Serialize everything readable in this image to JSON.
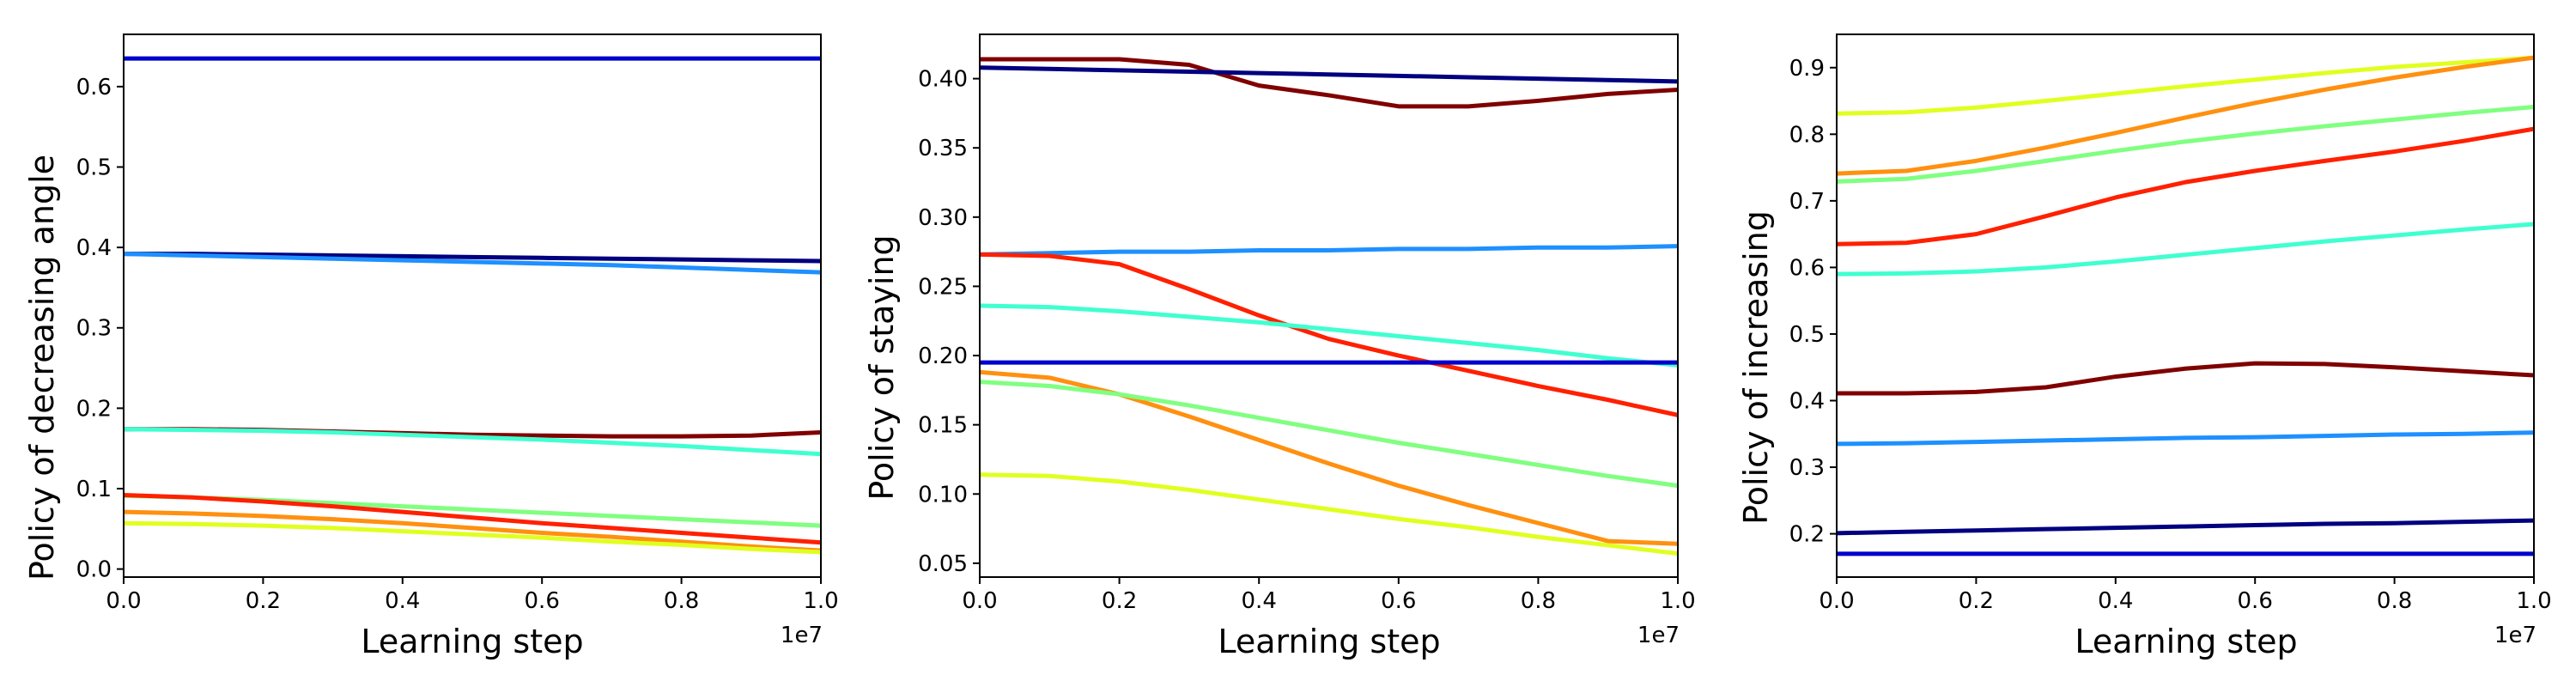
{
  "chart_data": [
    {
      "type": "line",
      "xlabel": "Learning step",
      "ylabel": "Policy of decreasing angle",
      "x_offset_label": "1e7",
      "xlim": [
        0,
        1.0
      ],
      "ylim": [
        -0.01,
        0.665
      ],
      "xticks": [
        "0.0",
        "0.2",
        "0.4",
        "0.6",
        "0.8",
        "1.0"
      ],
      "yticks": [
        "0.0",
        "0.1",
        "0.2",
        "0.3",
        "0.4",
        "0.5",
        "0.6"
      ],
      "grid": false,
      "x": [
        0.0,
        0.1,
        0.2,
        0.3,
        0.4,
        0.5,
        0.6,
        0.7,
        0.8,
        0.9,
        1.0
      ],
      "series": [
        {
          "color": "#0000cd",
          "values": [
            0.635,
            0.635,
            0.635,
            0.635,
            0.635,
            0.635,
            0.635,
            0.635,
            0.635,
            0.635,
            0.635
          ]
        },
        {
          "color": "#000080",
          "values": [
            0.392,
            0.392,
            0.391,
            0.39,
            0.389,
            0.388,
            0.387,
            0.386,
            0.385,
            0.384,
            0.383
          ]
        },
        {
          "color": "#1e90ff",
          "values": [
            0.392,
            0.39,
            0.388,
            0.386,
            0.384,
            0.382,
            0.38,
            0.378,
            0.375,
            0.372,
            0.369
          ]
        },
        {
          "color": "#800000",
          "values": [
            0.174,
            0.174,
            0.173,
            0.171,
            0.169,
            0.167,
            0.166,
            0.165,
            0.165,
            0.166,
            0.17
          ]
        },
        {
          "color": "#40ffd0",
          "values": [
            0.174,
            0.173,
            0.172,
            0.17,
            0.167,
            0.164,
            0.161,
            0.157,
            0.153,
            0.148,
            0.143
          ]
        },
        {
          "color": "#80ff80",
          "values": [
            0.091,
            0.089,
            0.086,
            0.082,
            0.078,
            0.074,
            0.07,
            0.066,
            0.062,
            0.058,
            0.054
          ]
        },
        {
          "color": "#ff2000",
          "values": [
            0.092,
            0.089,
            0.084,
            0.078,
            0.071,
            0.064,
            0.057,
            0.051,
            0.045,
            0.039,
            0.033
          ]
        },
        {
          "color": "#ff9010",
          "values": [
            0.071,
            0.069,
            0.066,
            0.062,
            0.057,
            0.051,
            0.045,
            0.04,
            0.034,
            0.028,
            0.023
          ]
        },
        {
          "color": "#e0ff20",
          "values": [
            0.057,
            0.056,
            0.054,
            0.051,
            0.047,
            0.043,
            0.039,
            0.034,
            0.03,
            0.025,
            0.021
          ]
        }
      ]
    },
    {
      "type": "line",
      "xlabel": "Learning step",
      "ylabel": "Policy of staying",
      "x_offset_label": "1e7",
      "xlim": [
        0,
        1.0
      ],
      "ylim": [
        0.04,
        0.432
      ],
      "xticks": [
        "0.0",
        "0.2",
        "0.4",
        "0.6",
        "0.8",
        "1.0"
      ],
      "yticks": [
        "0.05",
        "0.10",
        "0.15",
        "0.20",
        "0.25",
        "0.30",
        "0.35",
        "0.40"
      ],
      "grid": false,
      "x": [
        0.0,
        0.1,
        0.2,
        0.3,
        0.4,
        0.5,
        0.6,
        0.7,
        0.8,
        0.9,
        1.0
      ],
      "series": [
        {
          "color": "#800000",
          "values": [
            0.414,
            0.414,
            0.414,
            0.41,
            0.395,
            0.388,
            0.38,
            0.38,
            0.384,
            0.389,
            0.392
          ]
        },
        {
          "color": "#000080",
          "values": [
            0.408,
            0.407,
            0.406,
            0.405,
            0.404,
            0.403,
            0.402,
            0.401,
            0.4,
            0.399,
            0.398
          ]
        },
        {
          "color": "#1e90ff",
          "values": [
            0.273,
            0.274,
            0.275,
            0.275,
            0.276,
            0.276,
            0.277,
            0.277,
            0.278,
            0.278,
            0.279
          ]
        },
        {
          "color": "#ff2000",
          "values": [
            0.273,
            0.272,
            0.266,
            0.248,
            0.229,
            0.212,
            0.2,
            0.189,
            0.178,
            0.168,
            0.157
          ]
        },
        {
          "color": "#40ffd0",
          "values": [
            0.236,
            0.235,
            0.232,
            0.228,
            0.224,
            0.219,
            0.214,
            0.209,
            0.204,
            0.198,
            0.193
          ]
        },
        {
          "color": "#0000cd",
          "values": [
            0.195,
            0.195,
            0.195,
            0.195,
            0.195,
            0.195,
            0.195,
            0.195,
            0.195,
            0.195,
            0.195
          ]
        },
        {
          "color": "#ff9010",
          "values": [
            0.188,
            0.184,
            0.172,
            0.156,
            0.139,
            0.122,
            0.106,
            0.092,
            0.079,
            0.066,
            0.064
          ]
        },
        {
          "color": "#80ff80",
          "values": [
            0.181,
            0.178,
            0.172,
            0.164,
            0.155,
            0.146,
            0.137,
            0.129,
            0.121,
            0.113,
            0.106
          ]
        },
        {
          "color": "#e0ff20",
          "values": [
            0.114,
            0.113,
            0.109,
            0.103,
            0.096,
            0.089,
            0.082,
            0.076,
            0.069,
            0.063,
            0.057
          ]
        }
      ]
    },
    {
      "type": "line",
      "xlabel": "Learning step",
      "ylabel": "Policy of increasing",
      "x_offset_label": "1e7",
      "xlim": [
        0,
        1.0
      ],
      "ylim": [
        0.135,
        0.95
      ],
      "xticks": [
        "0.0",
        "0.2",
        "0.4",
        "0.6",
        "0.8",
        "1.0"
      ],
      "yticks": [
        "0.2",
        "0.3",
        "0.4",
        "0.5",
        "0.6",
        "0.7",
        "0.8",
        "0.9"
      ],
      "grid": false,
      "x": [
        0.0,
        0.1,
        0.2,
        0.3,
        0.4,
        0.5,
        0.6,
        0.7,
        0.8,
        0.9,
        1.0
      ],
      "series": [
        {
          "color": "#e0ff20",
          "values": [
            0.831,
            0.833,
            0.84,
            0.85,
            0.861,
            0.872,
            0.882,
            0.892,
            0.901,
            0.908,
            0.915
          ]
        },
        {
          "color": "#ff9010",
          "values": [
            0.741,
            0.745,
            0.76,
            0.78,
            0.802,
            0.825,
            0.847,
            0.867,
            0.885,
            0.901,
            0.915
          ]
        },
        {
          "color": "#80ff80",
          "values": [
            0.729,
            0.733,
            0.745,
            0.76,
            0.775,
            0.789,
            0.801,
            0.812,
            0.822,
            0.832,
            0.841
          ]
        },
        {
          "color": "#ff2000",
          "values": [
            0.635,
            0.637,
            0.65,
            0.677,
            0.705,
            0.728,
            0.745,
            0.76,
            0.774,
            0.79,
            0.808
          ]
        },
        {
          "color": "#40ffd0",
          "values": [
            0.59,
            0.591,
            0.594,
            0.6,
            0.609,
            0.619,
            0.629,
            0.639,
            0.648,
            0.657,
            0.665
          ]
        },
        {
          "color": "#800000",
          "values": [
            0.411,
            0.411,
            0.413,
            0.42,
            0.436,
            0.448,
            0.456,
            0.455,
            0.45,
            0.444,
            0.438
          ]
        },
        {
          "color": "#1e90ff",
          "values": [
            0.335,
            0.336,
            0.338,
            0.34,
            0.342,
            0.344,
            0.345,
            0.347,
            0.349,
            0.35,
            0.352
          ]
        },
        {
          "color": "#000080",
          "values": [
            0.201,
            0.203,
            0.205,
            0.207,
            0.209,
            0.211,
            0.213,
            0.215,
            0.216,
            0.218,
            0.22
          ]
        },
        {
          "color": "#0000cd",
          "values": [
            0.17,
            0.17,
            0.17,
            0.17,
            0.17,
            0.17,
            0.17,
            0.17,
            0.17,
            0.17,
            0.17
          ]
        }
      ]
    }
  ]
}
